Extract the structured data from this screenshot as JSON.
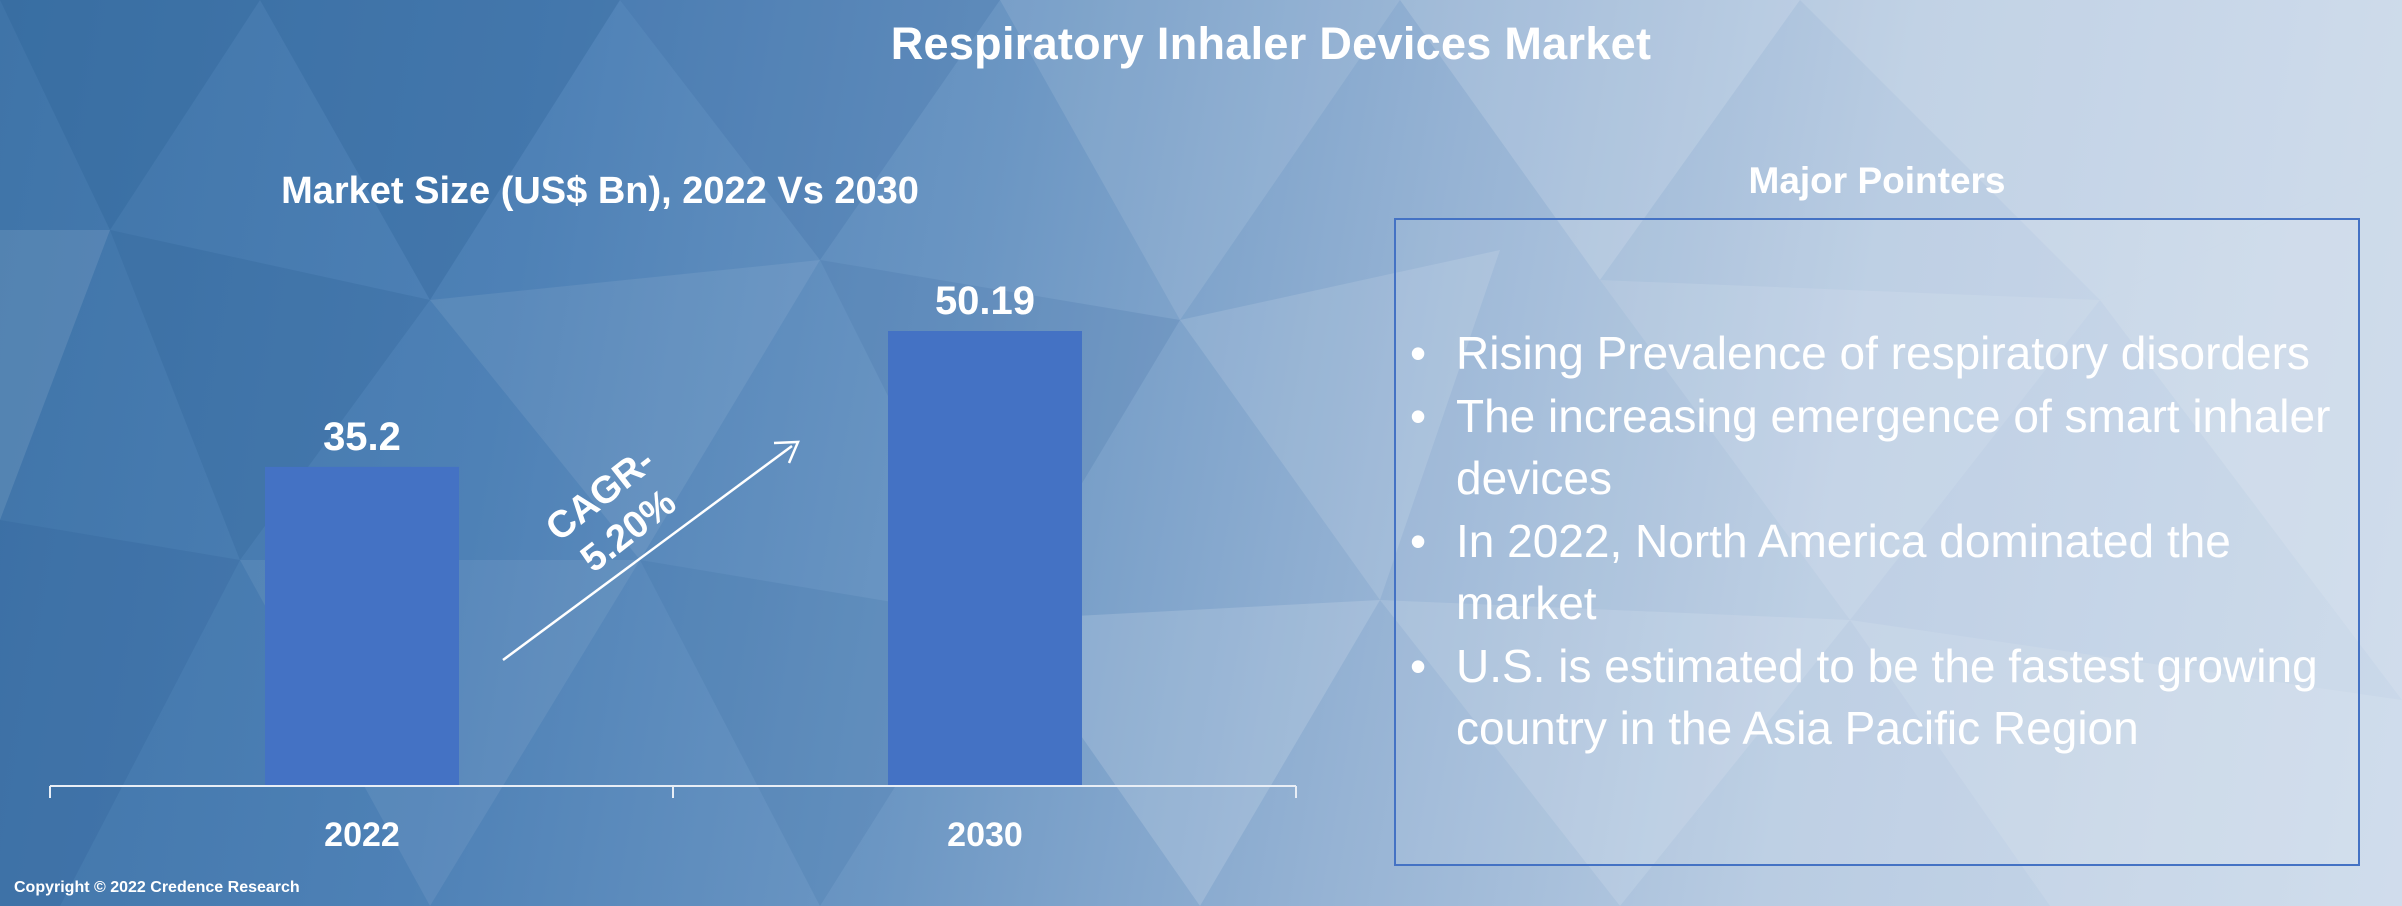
{
  "title": "Respiratory Inhaler Devices Market",
  "chart_data": {
    "type": "bar",
    "title": "Market Size (US$ Bn), 2022 Vs 2030",
    "categories": [
      "2022",
      "2030"
    ],
    "values": [
      35.2,
      50.19
    ],
    "value_labels": [
      "35.2",
      "50.19"
    ],
    "xlabel": "",
    "ylabel": "",
    "ylim": [
      0,
      50.19
    ],
    "bar_color": "#4472c4",
    "annotation": {
      "line1": "CAGR-",
      "line2": "5.20%"
    }
  },
  "pointers": {
    "title": "Major Pointers",
    "items": [
      "Rising Prevalence of respiratory disorders",
      "The increasing emergence of smart inhaler devices",
      "In 2022, North America dominated the market",
      "U.S. is estimated to be the fastest growing country in the Asia Pacific Region"
    ]
  },
  "copyright": "Copyright © 2022 Credence Research"
}
